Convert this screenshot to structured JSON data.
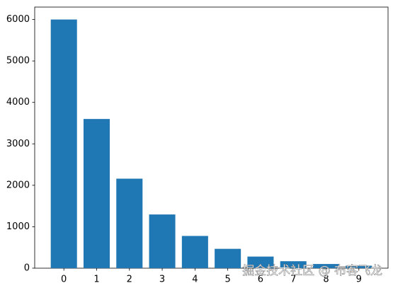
{
  "chart_data": {
    "type": "bar",
    "x": [
      0,
      1,
      2,
      3,
      4,
      5,
      6,
      7,
      8,
      9
    ],
    "values": [
      6000,
      3600,
      2160,
      1296,
      778,
      467,
      280,
      168,
      101,
      60
    ],
    "color": "#1f77b4",
    "bar_width": 0.8,
    "xlim": [
      -0.89,
      9.89
    ],
    "xticks": [
      0,
      1,
      2,
      3,
      4,
      5,
      6,
      7,
      8,
      9
    ],
    "ylim": [
      0,
      6300
    ],
    "yticks": [
      0,
      1000,
      2000,
      3000,
      4000,
      5000,
      6000
    ],
    "grid": false
  },
  "watermark": "掘金技术社区 @ 布客飞龙"
}
